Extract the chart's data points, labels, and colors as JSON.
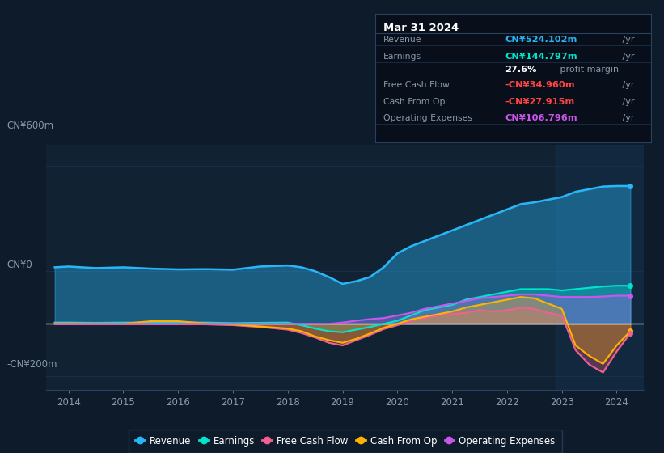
{
  "bg_color": "#0d1b2a",
  "plot_bg_color": "#112233",
  "grid_color": "#1a3050",
  "zero_line_color": "#ffffff",
  "revenue_color": "#29b6f6",
  "earnings_color": "#00e5cc",
  "fcf_color": "#f06090",
  "cashfromop_color": "#ffb300",
  "opex_color": "#cc55ee",
  "legend_bg": "#0d1b2a",
  "legend_border": "#2a4060",
  "tooltip_bg": "#080f1a",
  "tooltip_border": "#2a4060",
  "ylim": [
    -250,
    680
  ],
  "xlim": [
    2013.6,
    2024.5
  ],
  "x_ticks": [
    2014,
    2015,
    2016,
    2017,
    2018,
    2019,
    2020,
    2021,
    2022,
    2023,
    2024
  ],
  "years": [
    2013.75,
    2014.0,
    2014.5,
    2015.0,
    2015.5,
    2016.0,
    2016.5,
    2017.0,
    2017.5,
    2018.0,
    2018.25,
    2018.5,
    2018.75,
    2019.0,
    2019.25,
    2019.5,
    2019.75,
    2020.0,
    2020.25,
    2020.5,
    2020.75,
    2021.0,
    2021.25,
    2021.5,
    2021.75,
    2022.0,
    2022.25,
    2022.5,
    2022.75,
    2023.0,
    2023.25,
    2023.5,
    2023.75,
    2024.0,
    2024.25
  ],
  "revenue": [
    215,
    218,
    212,
    215,
    210,
    207,
    208,
    206,
    218,
    222,
    215,
    200,
    178,
    152,
    162,
    178,
    215,
    268,
    295,
    315,
    335,
    355,
    375,
    395,
    415,
    435,
    455,
    462,
    472,
    482,
    502,
    512,
    522,
    524,
    524
  ],
  "earnings": [
    5,
    5,
    4,
    5,
    4,
    4,
    5,
    3,
    4,
    5,
    -5,
    -18,
    -28,
    -32,
    -22,
    -12,
    0,
    12,
    32,
    52,
    62,
    72,
    92,
    102,
    112,
    122,
    132,
    132,
    132,
    127,
    132,
    137,
    142,
    145,
    145
  ],
  "fcf": [
    -2,
    -2,
    -2,
    -2,
    -2,
    -2,
    -2,
    -5,
    -12,
    -22,
    -35,
    -52,
    -72,
    -82,
    -62,
    -42,
    -20,
    -5,
    12,
    22,
    32,
    37,
    42,
    52,
    47,
    52,
    62,
    57,
    42,
    32,
    -100,
    -155,
    -185,
    -105,
    -35
  ],
  "cashfromop": [
    2,
    2,
    1,
    1,
    10,
    10,
    2,
    -2,
    -10,
    -18,
    -28,
    -48,
    -62,
    -72,
    -57,
    -37,
    -15,
    0,
    17,
    27,
    37,
    47,
    62,
    72,
    82,
    92,
    102,
    97,
    77,
    57,
    -82,
    -122,
    -152,
    -82,
    -28
  ],
  "opex": [
    0,
    0,
    0,
    0,
    0,
    0,
    0,
    0,
    0,
    0,
    0,
    0,
    0,
    5,
    12,
    18,
    22,
    32,
    42,
    57,
    67,
    77,
    87,
    97,
    102,
    107,
    112,
    112,
    107,
    102,
    102,
    102,
    104,
    107,
    107
  ],
  "title": "Mar 31 2024",
  "y_label_600": "CN¥600m",
  "y_label_0": "CN¥0",
  "y_label_neg200": "-CN¥200m",
  "legend_items": [
    {
      "label": "Revenue",
      "color": "#29b6f6"
    },
    {
      "label": "Earnings",
      "color": "#00e5cc"
    },
    {
      "label": "Free Cash Flow",
      "color": "#f06090"
    },
    {
      "label": "Cash From Op",
      "color": "#ffb300"
    },
    {
      "label": "Operating Expenses",
      "color": "#cc55ee"
    }
  ]
}
